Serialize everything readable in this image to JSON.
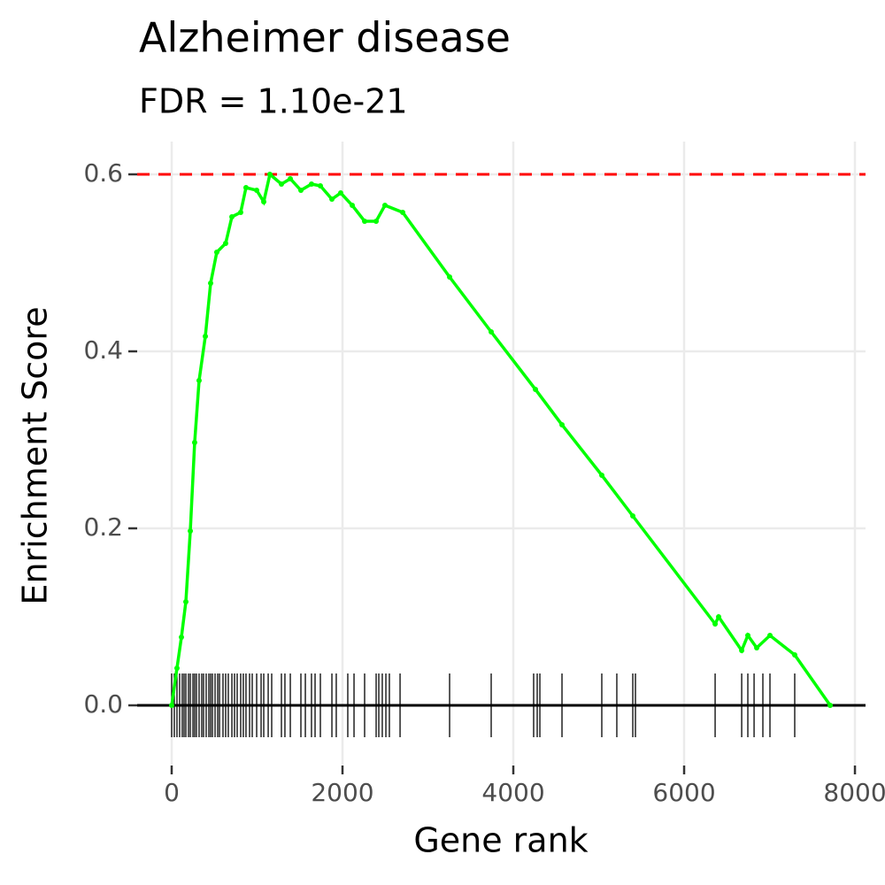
{
  "chart_data": {
    "type": "line",
    "title": "Alzheimer disease",
    "subtitle": "FDR = 1.10e-21",
    "x_label": "Gene rank",
    "y_label": "Enrichment Score",
    "x": [
      0,
      62,
      114,
      166,
      218,
      269,
      321,
      394,
      456,
      528,
      632,
      705,
      808,
      870,
      995,
      1078,
      1150,
      1285,
      1389,
      1513,
      1637,
      1741,
      1876,
      1979,
      2114,
      2259,
      2394,
      2497,
      2705,
      3254,
      3741,
      4259,
      4570,
      5036,
      5399,
      6363,
      6404,
      6674,
      6746,
      6850,
      7005,
      7295,
      7710
    ],
    "series": [
      {
        "color": "#00ff00",
        "values": [
          0,
          0.042,
          0.077,
          0.117,
          0.197,
          0.297,
          0.367,
          0.417,
          0.477,
          0.512,
          0.522,
          0.552,
          0.557,
          0.585,
          0.582,
          0.569,
          0.6,
          0.589,
          0.595,
          0.582,
          0.589,
          0.587,
          0.572,
          0.579,
          0.565,
          0.547,
          0.547,
          0.565,
          0.557,
          0.484,
          0.422,
          0.357,
          0.317,
          0.26,
          0.214,
          0.092,
          0.1,
          0.062,
          0.079,
          0.065,
          0.079,
          0.057,
          0
        ]
      }
    ],
    "hits": [
      0,
      31,
      62,
      93,
      124,
      145,
      166,
      197,
      218,
      249,
      269,
      290,
      321,
      352,
      373,
      404,
      435,
      456,
      477,
      508,
      539,
      560,
      601,
      632,
      663,
      705,
      736,
      767,
      808,
      839,
      870,
      912,
      943,
      995,
      1047,
      1078,
      1130,
      1171,
      1285,
      1326,
      1389,
      1513,
      1565,
      1637,
      1679,
      1741,
      1876,
      1927,
      2062,
      2135,
      2259,
      2394,
      2425,
      2466,
      2508,
      2549,
      2674,
      3254,
      3741,
      4238,
      4280,
      4311,
      4570,
      5036,
      5212,
      5399,
      5430,
      6363,
      6674,
      6746,
      6819,
      6922,
      7005,
      7295
    ],
    "reference_lines": {
      "values": [
        0.6,
        0
      ],
      "color": "#ff0000"
    },
    "xlim": [
      -404,
      8124
    ],
    "ylim": [
      -0.068,
      0.637
    ],
    "xticks": [
      0,
      2000,
      4000,
      6000,
      8000
    ],
    "yticks": [
      {
        "value": 0,
        "label": "0.0"
      },
      {
        "value": 0.2,
        "label": "0.2"
      },
      {
        "value": 0.4,
        "label": "0.4"
      },
      {
        "value": 0.6,
        "label": "0.6"
      }
    ],
    "grid": true
  }
}
